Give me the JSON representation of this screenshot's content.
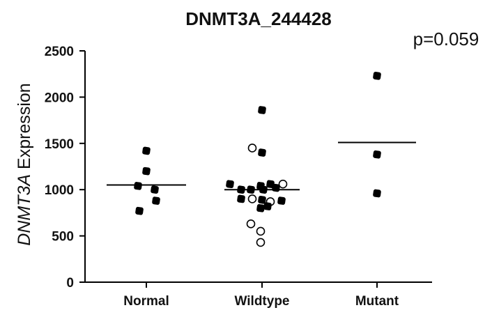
{
  "chart_data": {
    "type": "scatter",
    "title": "DNMT3A_244428",
    "annotation": "p=0.059",
    "ylabel": {
      "italic": "DNMT3A",
      "rest": " Expression"
    },
    "xlabel": "",
    "categories": [
      "Normal",
      "Wildtype",
      "Mutant"
    ],
    "ylim": [
      0,
      2500
    ],
    "yticks": [
      0,
      500,
      1000,
      1500,
      2000,
      2500
    ],
    "grid": false,
    "legend": "none",
    "point_styles": {
      "filled": "#000000",
      "open": "#ffffff"
    },
    "line_color": "#000000",
    "series": [
      {
        "category": "Normal",
        "mean": 1050,
        "points": [
          {
            "value": 1420,
            "style": "filled",
            "offset": 0
          },
          {
            "value": 1200,
            "style": "filled",
            "offset": 0
          },
          {
            "value": 1040,
            "style": "filled",
            "offset": -12
          },
          {
            "value": 1000,
            "style": "filled",
            "offset": 12
          },
          {
            "value": 880,
            "style": "filled",
            "offset": 14
          },
          {
            "value": 770,
            "style": "filled",
            "offset": -10
          }
        ]
      },
      {
        "category": "Wildtype",
        "mean": 1000,
        "points": [
          {
            "value": 1860,
            "style": "filled",
            "offset": 0
          },
          {
            "value": 1450,
            "style": "open",
            "offset": -14
          },
          {
            "value": 1400,
            "style": "filled",
            "offset": 0
          },
          {
            "value": 1060,
            "style": "filled",
            "offset": -46
          },
          {
            "value": 1040,
            "style": "filled",
            "offset": -2
          },
          {
            "value": 1060,
            "style": "filled",
            "offset": 12
          },
          {
            "value": 1060,
            "style": "open",
            "offset": 30
          },
          {
            "value": 1000,
            "style": "filled",
            "offset": -30
          },
          {
            "value": 1000,
            "style": "filled",
            "offset": -16
          },
          {
            "value": 1000,
            "style": "filled",
            "offset": 2
          },
          {
            "value": 1020,
            "style": "filled",
            "offset": 20
          },
          {
            "value": 900,
            "style": "filled",
            "offset": -30
          },
          {
            "value": 900,
            "style": "open",
            "offset": -14
          },
          {
            "value": 890,
            "style": "filled",
            "offset": 0
          },
          {
            "value": 870,
            "style": "open",
            "offset": 12
          },
          {
            "value": 880,
            "style": "filled",
            "offset": 28
          },
          {
            "value": 800,
            "style": "filled",
            "offset": -2
          },
          {
            "value": 820,
            "style": "filled",
            "offset": 8
          },
          {
            "value": 630,
            "style": "open",
            "offset": -16
          },
          {
            "value": 550,
            "style": "open",
            "offset": -2
          },
          {
            "value": 430,
            "style": "open",
            "offset": -2
          }
        ]
      },
      {
        "category": "Mutant",
        "mean": 1510,
        "points": [
          {
            "value": 2230,
            "style": "filled",
            "offset": 0
          },
          {
            "value": 1380,
            "style": "filled",
            "offset": 0
          },
          {
            "value": 960,
            "style": "filled",
            "offset": 0
          }
        ]
      }
    ]
  }
}
